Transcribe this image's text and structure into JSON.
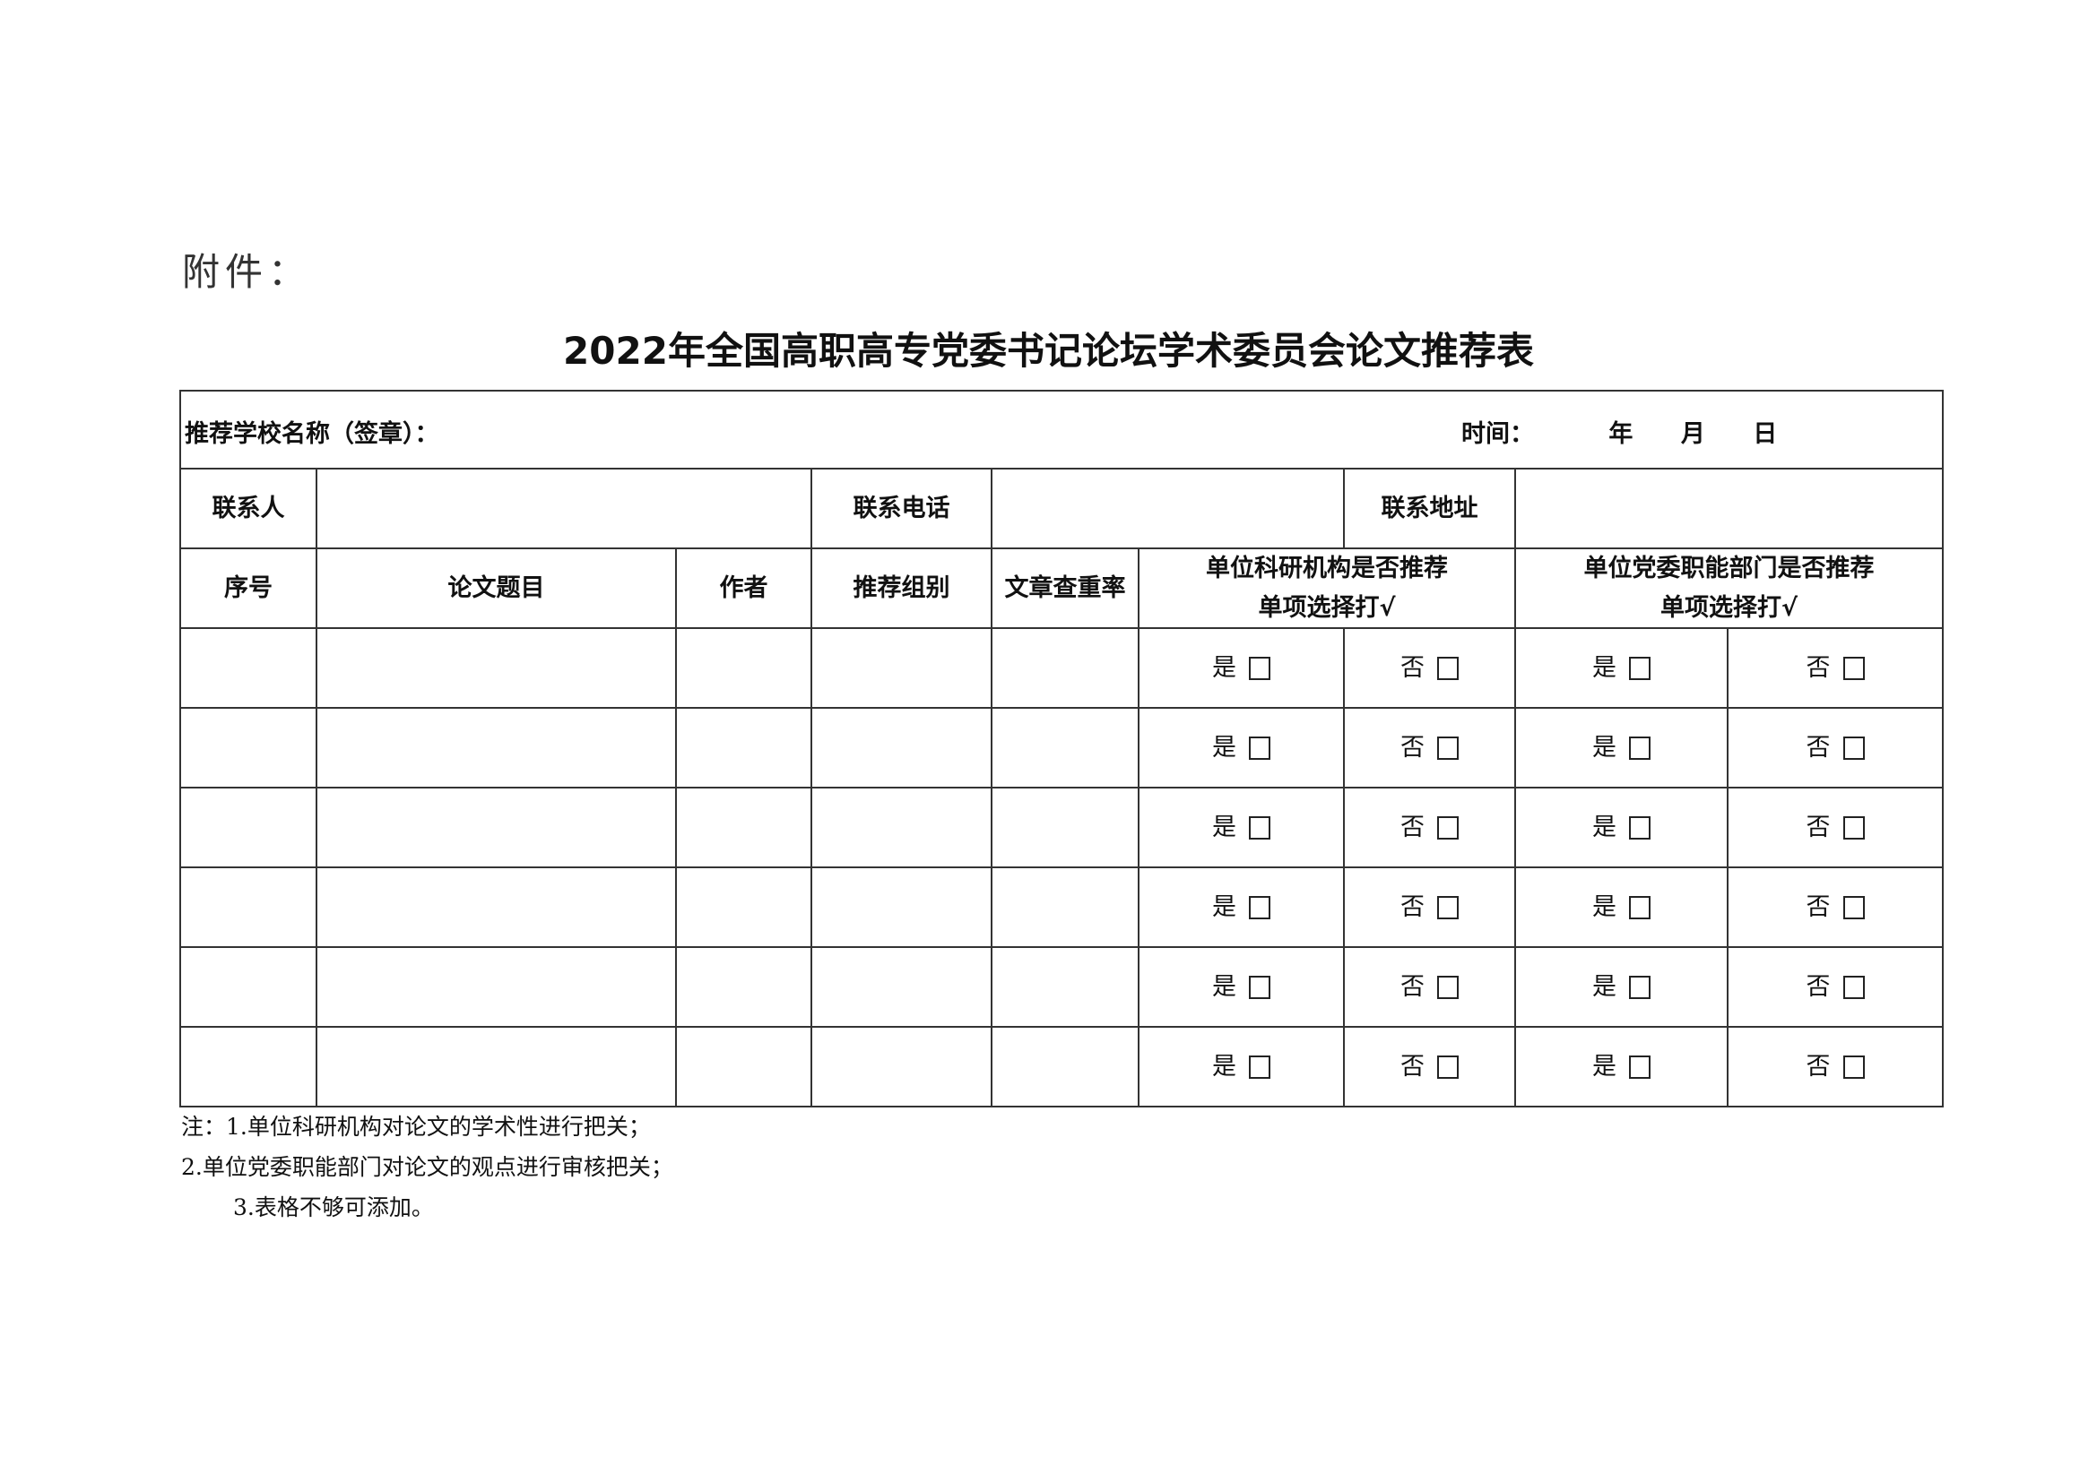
{
  "attachment_label": "附件：",
  "title": "2022年全国高职高专党委书记论坛学术委员会论文推荐表",
  "form": {
    "school_label": "推荐学校名称（签章）：",
    "time_label": "时间：",
    "year": "年",
    "month": "月",
    "day": "日",
    "contact_person": "联系人",
    "contact_phone": "联系电话",
    "contact_address": "联系地址"
  },
  "columns": {
    "seq": "序号",
    "paper_title": "论文题目",
    "author": "作者",
    "group": "推荐组别",
    "dup_rate": "文章查重率",
    "research_rec": "单位科研机构是否推荐",
    "party_rec": "单位党委职能部门是否推荐",
    "single_choice": "单项选择打√"
  },
  "options": {
    "yes": "是",
    "no": "否"
  },
  "row_count": 6,
  "notes": [
    "注：1.单位科研机构对论文的学术性进行把关；",
    "2.单位党委职能部门对论文的观点进行审核把关；",
    "3.表格不够可添加。"
  ]
}
